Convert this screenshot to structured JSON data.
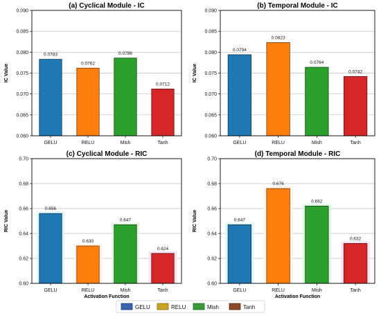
{
  "chart_data": [
    {
      "type": "bar",
      "title": "(a) Cyclical Module - IC",
      "xlabel": "",
      "ylabel": "IC Value",
      "categories": [
        "GELU",
        "RELU",
        "Mish",
        "Tanh"
      ],
      "values": [
        0.0783,
        0.0762,
        0.0786,
        0.0712
      ],
      "value_labels": [
        "0.0783",
        "0.0762",
        "0.0786",
        "0.0712"
      ],
      "ylim": [
        0.06,
        0.09
      ],
      "yticks": [
        0.06,
        0.065,
        0.07,
        0.075,
        0.08,
        0.085,
        0.09
      ],
      "ytick_labels": [
        "0.060",
        "0.065",
        "0.070",
        "0.075",
        "0.080",
        "0.085",
        "0.090"
      ],
      "colors": [
        "#1f77b4",
        "#ff7f0e",
        "#2ca02c",
        "#d62728"
      ],
      "grid": true,
      "highlight": false
    },
    {
      "type": "bar",
      "title": "(b) Temporal Module - IC",
      "xlabel": "",
      "ylabel": "IC Value",
      "categories": [
        "GELU",
        "RELU",
        "Mish",
        "Tanh"
      ],
      "values": [
        0.0794,
        0.0823,
        0.0764,
        0.0742
      ],
      "value_labels": [
        "0.0794",
        "0.0823",
        "0.0764",
        "0.0742"
      ],
      "ylim": [
        0.06,
        0.09
      ],
      "yticks": [
        0.06,
        0.065,
        0.07,
        0.075,
        0.08,
        0.085,
        0.09
      ],
      "ytick_labels": [
        "0.060",
        "0.065",
        "0.070",
        "0.075",
        "0.080",
        "0.085",
        "0.090"
      ],
      "colors": [
        "#1f77b4",
        "#ff7f0e",
        "#2ca02c",
        "#d62728"
      ],
      "grid": true,
      "highlight": false
    },
    {
      "type": "bar",
      "title": "(c) Cyclical Module - RIC",
      "xlabel": "Activation Function",
      "ylabel": "RIC Value",
      "categories": [
        "GELU",
        "RELU",
        "Mish",
        "Tanh"
      ],
      "values": [
        0.656,
        0.63,
        0.647,
        0.624
      ],
      "value_labels": [
        "0.656",
        "0.630",
        "0.647",
        "0.624"
      ],
      "ylim": [
        0.6,
        0.7
      ],
      "yticks": [
        0.6,
        0.62,
        0.64,
        0.66,
        0.68,
        0.7
      ],
      "ytick_labels": [
        "0.60",
        "0.62",
        "0.64",
        "0.66",
        "0.68",
        "0.70"
      ],
      "colors": [
        "#1f77b4",
        "#ff7f0e",
        "#2ca02c",
        "#d62728"
      ],
      "grid": true,
      "highlight": true
    },
    {
      "type": "bar",
      "title": "(d) Temporal Module - RIC",
      "xlabel": "Activation Function",
      "ylabel": "RIC Value",
      "categories": [
        "GELU",
        "RELU",
        "Mish",
        "Tanh"
      ],
      "values": [
        0.647,
        0.676,
        0.662,
        0.632
      ],
      "value_labels": [
        "0.647",
        "0.676",
        "0.662",
        "0.632"
      ],
      "ylim": [
        0.6,
        0.7
      ],
      "yticks": [
        0.6,
        0.62,
        0.64,
        0.66,
        0.68,
        0.7
      ],
      "ytick_labels": [
        "0.60",
        "0.62",
        "0.64",
        "0.66",
        "0.68",
        "0.70"
      ],
      "colors": [
        "#1f77b4",
        "#ff7f0e",
        "#2ca02c",
        "#d62728"
      ],
      "grid": true,
      "highlight": true
    }
  ],
  "legend": {
    "placement": "bottom-center",
    "items": [
      {
        "label": "GELU",
        "color": "#3a66b0",
        "edge": "#1a3a80"
      },
      {
        "label": "RELU",
        "color": "#c9a227",
        "edge": "#8a6d10"
      },
      {
        "label": "Mish",
        "color": "#3a9a3a",
        "edge": "#1f6a1f"
      },
      {
        "label": "Tanh",
        "color": "#8a4a2a",
        "edge": "#5a2a12"
      }
    ]
  },
  "colors": {
    "highlight_tints": [
      "#d8f4f4",
      "#fff0e0",
      "#dff6df",
      "#f8dcf0"
    ]
  }
}
